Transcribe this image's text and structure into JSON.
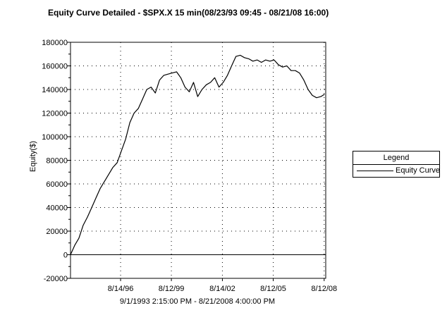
{
  "title": "Equity Curve Detailed - $SPX.X 15 min(08/23/93 09:45 - 08/21/08 16:00)",
  "x_subtitle": "9/1/1993 2:15:00 PM - 8/21/2008 4:00:00 PM",
  "legend": {
    "title": "Legend",
    "items": [
      "Equity Curve"
    ]
  },
  "colors": {
    "line": "#000000",
    "grid": "#000000",
    "background": "#ffffff"
  },
  "chart_data": {
    "type": "line",
    "title": "Equity Curve Detailed - $SPX.X 15 min(08/23/93 09:45 - 08/21/08 16:00)",
    "xlabel": "9/1/1993 2:15:00 PM - 8/21/2008 4:00:00 PM",
    "ylabel": "Equity($)",
    "ylim": [
      -20000,
      180000
    ],
    "xlim": [
      "1993-09-01",
      "2008-09-15"
    ],
    "y_ticks": [
      -20000,
      0,
      20000,
      40000,
      60000,
      80000,
      100000,
      120000,
      140000,
      160000,
      180000
    ],
    "y_tick_labels": [
      "-20000",
      "0",
      "20000",
      "40000",
      "60000",
      "80000",
      "100000",
      "120000",
      "140000",
      "160000",
      "180000"
    ],
    "x_tick_labels": [
      "8/14/96",
      "8/12/99",
      "8/14/02",
      "8/12/05",
      "8/12/08"
    ],
    "x_tick_dates": [
      "1996-08-14",
      "1999-08-12",
      "2002-08-14",
      "2005-08-12",
      "2008-08-12"
    ],
    "grid": "dotted",
    "legend_position": "right",
    "series": [
      {
        "name": "Equity Curve",
        "x": [
          "1993-09-01",
          "1993-12-01",
          "1994-03-01",
          "1994-06-01",
          "1994-09-01",
          "1994-12-01",
          "1995-03-01",
          "1995-06-01",
          "1995-09-01",
          "1995-12-01",
          "1996-03-01",
          "1996-06-01",
          "1996-09-01",
          "1996-12-01",
          "1997-03-01",
          "1997-06-01",
          "1997-09-01",
          "1997-12-01",
          "1998-03-01",
          "1998-06-01",
          "1998-09-01",
          "1998-12-01",
          "1999-03-01",
          "1999-06-01",
          "1999-09-01",
          "1999-12-01",
          "2000-03-01",
          "2000-06-01",
          "2000-09-01",
          "2000-12-01",
          "2001-03-01",
          "2001-06-01",
          "2001-09-01",
          "2001-12-01",
          "2002-03-01",
          "2002-06-01",
          "2002-09-01",
          "2002-12-01",
          "2003-03-01",
          "2003-06-01",
          "2003-09-01",
          "2003-12-01",
          "2004-03-01",
          "2004-06-01",
          "2004-09-01",
          "2004-12-01",
          "2005-03-01",
          "2005-06-01",
          "2005-09-01",
          "2005-12-01",
          "2006-03-01",
          "2006-06-01",
          "2006-09-01",
          "2006-12-01",
          "2007-03-01",
          "2007-06-01",
          "2007-09-01",
          "2007-12-01",
          "2008-03-01",
          "2008-06-01",
          "2008-08-21"
        ],
        "y": [
          0,
          8000,
          14000,
          25000,
          32000,
          40000,
          48000,
          56000,
          62000,
          68000,
          74000,
          78000,
          88000,
          98000,
          112000,
          120000,
          124000,
          132000,
          140000,
          142000,
          137000,
          148000,
          152000,
          153000,
          154000,
          155000,
          150000,
          142000,
          138000,
          146000,
          134000,
          140000,
          144000,
          146000,
          150000,
          142000,
          146000,
          152000,
          160000,
          168000,
          169000,
          167000,
          166000,
          164000,
          165000,
          163000,
          165000,
          164000,
          165000,
          161000,
          159000,
          160000,
          156000,
          156000,
          154000,
          148000,
          140000,
          135000,
          133000,
          134000,
          136000
        ]
      }
    ]
  }
}
